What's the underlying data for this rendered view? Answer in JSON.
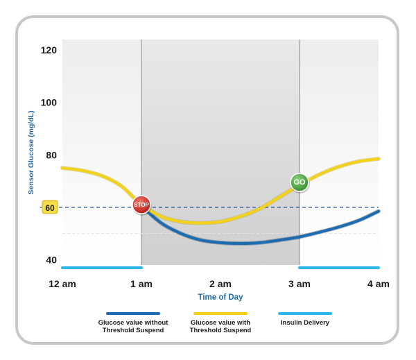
{
  "chart_data": {
    "type": "line",
    "xlabel": "Time of Day",
    "ylabel": "Sensor Glucose (mg/dL)",
    "x_categories": [
      "12 am",
      "1 am",
      "2 am",
      "3 am",
      "4 am"
    ],
    "y_ticks": [
      40,
      60,
      80,
      100,
      120
    ],
    "ylim": [
      38,
      124
    ],
    "threshold": {
      "value": 60,
      "label": "60",
      "color": "#1f4e8c"
    },
    "shaded_period": {
      "from": "1 am",
      "to": "3 am"
    },
    "series": [
      {
        "name": "Glucose value without Threshold Suspend",
        "color": "#1f6bb0",
        "x": [
          1.0,
          1.25,
          1.5,
          1.75,
          2.0,
          2.25,
          2.5,
          2.75,
          3.0,
          3.25,
          3.5,
          3.75,
          4.0
        ],
        "y": [
          60.5,
          54,
          50,
          47.5,
          46.5,
          46.2,
          46.5,
          47.5,
          48.7,
          50.5,
          52.5,
          55,
          58.5
        ]
      },
      {
        "name": "Glucose value with Threshold Suspend",
        "color": "#f2d21b",
        "x": [
          0,
          0.25,
          0.5,
          0.75,
          1.0,
          1.25,
          1.5,
          1.75,
          2.0,
          2.25,
          2.5,
          2.75,
          3.0,
          3.25,
          3.5,
          3.75,
          4.0
        ],
        "y": [
          75,
          74,
          72,
          68,
          61,
          56.5,
          54.5,
          54,
          54.5,
          56.5,
          59.5,
          64,
          68.5,
          72.5,
          75.5,
          77.5,
          78.5
        ]
      }
    ],
    "insulin_delivery": {
      "name": "Insulin Delivery",
      "color": "#2eb6e8",
      "segments": [
        [
          0,
          1
        ],
        [
          3,
          4
        ]
      ]
    },
    "markers": [
      {
        "label": "STOP",
        "x": 1.0,
        "y": 61,
        "color": "#d9251d"
      },
      {
        "label": "GO",
        "x": 3.0,
        "y": 69.5,
        "color": "#43a33b"
      }
    ],
    "legend": [
      {
        "line1": "Glucose value without",
        "line2": "Threshold Suspend",
        "color": "#1f6bb0"
      },
      {
        "line1": "Glucose value with",
        "line2": "Threshold Suspend",
        "color": "#f2d21b"
      },
      {
        "line1": "Insulin Delivery",
        "line2": "",
        "color": "#2eb6e8"
      }
    ]
  }
}
